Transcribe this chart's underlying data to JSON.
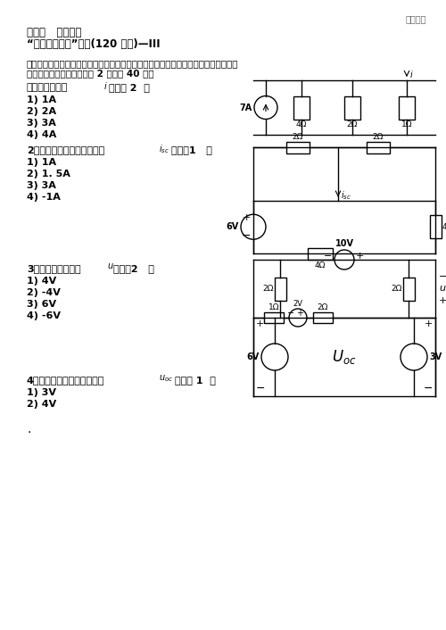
{
  "title_right": "精品文档",
  "line1": "试题库   薛永培作",
  "line2": "“电路分析基础”试题(120 分钟)—III",
  "section_title": "单项选择题（在每个小题的四个备选答案中，选出一个正确答案，并将正确答案的号码",
  "section_title2": "填入提干的括号内。每小题 2 分，共 40 分）",
  "q1_text": "图示电路中电流",
  "q1_var": "$i$",
  "q1_suffix": "等于（ 2  ）",
  "q1_options": [
    "1) 1A",
    "2) 2A",
    "3) 3A",
    "4) 4A"
  ],
  "q2_text": "2、图示单口网络的短路电流",
  "q2_var": "$i_{sc}$",
  "q2_suffix": "等于（1   ）",
  "q2_options": [
    "1) 1A",
    "2) 1. 5A",
    "3) 3A",
    "4) -1A"
  ],
  "q3_text": "3、图示电路中电压",
  "q3_var": "$u$",
  "q3_suffix": "等于（2   ）",
  "q3_options": [
    "1) 4V",
    "2) -4V",
    "3) 6V",
    "4) -6V"
  ],
  "q4_text": "4、图示单口网络的开路电压",
  "q4_var": "$u_{oc}$",
  "q4_suffix": "等于（ 1  ）",
  "q4_options": [
    "1) 3V",
    "2) 4V"
  ],
  "bg_color": "#ffffff"
}
